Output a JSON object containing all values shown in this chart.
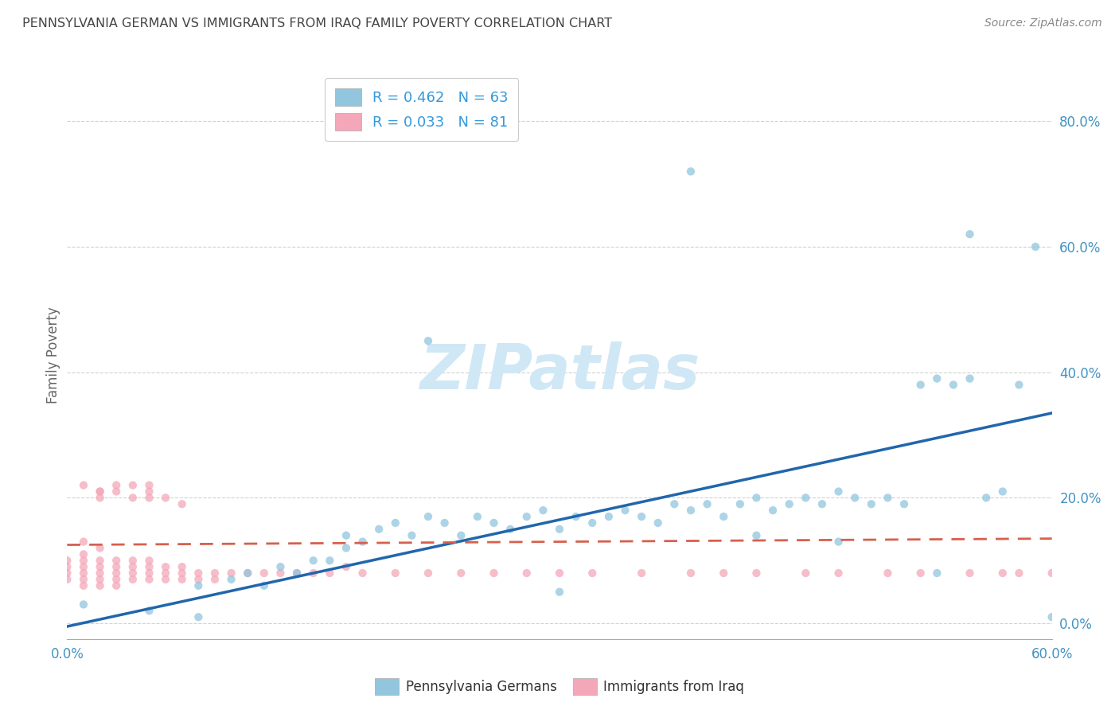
{
  "title": "PENNSYLVANIA GERMAN VS IMMIGRANTS FROM IRAQ FAMILY POVERTY CORRELATION CHART",
  "source_text": "Source: ZipAtlas.com",
  "ylabel": "Family Poverty",
  "xlim": [
    0.0,
    0.6
  ],
  "ylim": [
    -0.025,
    0.88
  ],
  "ytick_vals": [
    0.0,
    0.2,
    0.4,
    0.6,
    0.8
  ],
  "xtick_vals": [
    0.0,
    0.1,
    0.2,
    0.3,
    0.4,
    0.5,
    0.6
  ],
  "xtick_labels": [
    "0.0%",
    "",
    "",
    "",
    "",
    "",
    "60.0%"
  ],
  "legend_r1": "R = 0.462   N = 63",
  "legend_r2": "R = 0.033   N = 81",
  "blue_color": "#92c5de",
  "pink_color": "#f4a7b9",
  "blue_line_color": "#2166ac",
  "pink_line_color": "#d6604d",
  "tick_label_color": "#4393c3",
  "watermark_color": "#d0e8f5",
  "background_color": "#ffffff",
  "grid_color": "#cccccc",
  "title_color": "#444444",
  "source_color": "#888888",
  "legend_text_color": "#3399dd",
  "blue_line_y_start": -0.005,
  "blue_line_y_end": 0.335,
  "pink_line_y_start": 0.125,
  "pink_line_y_end": 0.135,
  "blue_x": [
    0.01,
    0.05,
    0.08,
    0.1,
    0.11,
    0.12,
    0.13,
    0.14,
    0.15,
    0.16,
    0.17,
    0.17,
    0.18,
    0.19,
    0.2,
    0.21,
    0.22,
    0.23,
    0.24,
    0.25,
    0.26,
    0.27,
    0.28,
    0.29,
    0.3,
    0.31,
    0.32,
    0.33,
    0.34,
    0.35,
    0.36,
    0.37,
    0.38,
    0.39,
    0.4,
    0.41,
    0.42,
    0.43,
    0.44,
    0.45,
    0.46,
    0.47,
    0.48,
    0.49,
    0.5,
    0.51,
    0.52,
    0.53,
    0.54,
    0.55,
    0.56,
    0.57,
    0.58,
    0.59,
    0.6,
    0.38,
    0.55,
    0.22,
    0.08,
    0.3,
    0.42,
    0.47,
    0.53
  ],
  "blue_y": [
    0.03,
    0.02,
    0.06,
    0.07,
    0.08,
    0.06,
    0.09,
    0.08,
    0.1,
    0.1,
    0.12,
    0.14,
    0.13,
    0.15,
    0.16,
    0.14,
    0.17,
    0.16,
    0.14,
    0.17,
    0.16,
    0.15,
    0.17,
    0.18,
    0.15,
    0.17,
    0.16,
    0.17,
    0.18,
    0.17,
    0.16,
    0.19,
    0.18,
    0.19,
    0.17,
    0.19,
    0.2,
    0.18,
    0.19,
    0.2,
    0.19,
    0.21,
    0.2,
    0.19,
    0.2,
    0.19,
    0.38,
    0.39,
    0.38,
    0.39,
    0.2,
    0.21,
    0.38,
    0.6,
    0.01,
    0.72,
    0.62,
    0.45,
    0.01,
    0.05,
    0.14,
    0.13,
    0.08
  ],
  "pink_x": [
    0.0,
    0.0,
    0.0,
    0.0,
    0.01,
    0.01,
    0.01,
    0.01,
    0.01,
    0.01,
    0.01,
    0.02,
    0.02,
    0.02,
    0.02,
    0.02,
    0.02,
    0.02,
    0.03,
    0.03,
    0.03,
    0.03,
    0.03,
    0.03,
    0.04,
    0.04,
    0.04,
    0.04,
    0.04,
    0.05,
    0.05,
    0.05,
    0.05,
    0.05,
    0.06,
    0.06,
    0.06,
    0.07,
    0.07,
    0.07,
    0.07,
    0.08,
    0.08,
    0.09,
    0.09,
    0.1,
    0.11,
    0.12,
    0.13,
    0.14,
    0.15,
    0.16,
    0.17,
    0.18,
    0.2,
    0.22,
    0.24,
    0.26,
    0.28,
    0.3,
    0.32,
    0.35,
    0.38,
    0.4,
    0.42,
    0.45,
    0.47,
    0.5,
    0.52,
    0.55,
    0.57,
    0.58,
    0.6,
    0.01,
    0.02,
    0.02,
    0.03,
    0.04,
    0.05,
    0.05,
    0.06
  ],
  "pink_y": [
    0.07,
    0.08,
    0.09,
    0.1,
    0.06,
    0.07,
    0.08,
    0.09,
    0.1,
    0.11,
    0.13,
    0.06,
    0.07,
    0.08,
    0.09,
    0.1,
    0.12,
    0.21,
    0.06,
    0.07,
    0.08,
    0.09,
    0.1,
    0.22,
    0.07,
    0.08,
    0.09,
    0.1,
    0.2,
    0.07,
    0.08,
    0.09,
    0.1,
    0.22,
    0.07,
    0.08,
    0.09,
    0.07,
    0.08,
    0.09,
    0.19,
    0.07,
    0.08,
    0.07,
    0.08,
    0.08,
    0.08,
    0.08,
    0.08,
    0.08,
    0.08,
    0.08,
    0.09,
    0.08,
    0.08,
    0.08,
    0.08,
    0.08,
    0.08,
    0.08,
    0.08,
    0.08,
    0.08,
    0.08,
    0.08,
    0.08,
    0.08,
    0.08,
    0.08,
    0.08,
    0.08,
    0.08,
    0.08,
    0.22,
    0.21,
    0.2,
    0.21,
    0.22,
    0.2,
    0.21,
    0.2
  ]
}
